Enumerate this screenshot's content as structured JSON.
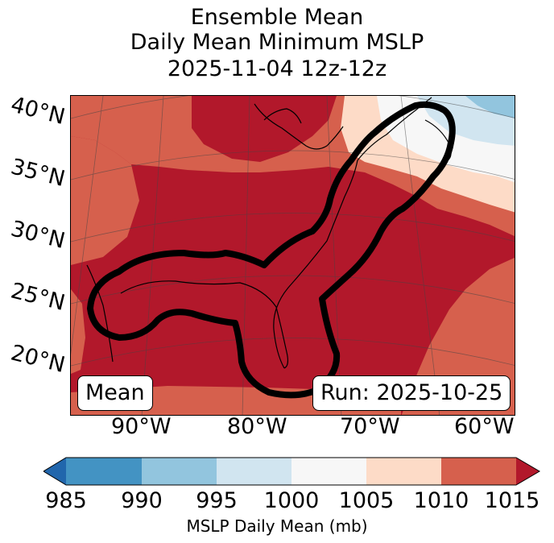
{
  "title": {
    "line1": "Ensemble Mean",
    "line2": "Daily Mean Minimum MSLP",
    "line3": "2025-11-04 12z-12z"
  },
  "axes": {
    "lat_labels": [
      "40°N",
      "35°N",
      "30°N",
      "25°N",
      "20°N"
    ],
    "lon_labels": [
      "90°W",
      "80°W",
      "70°W",
      "60°W"
    ]
  },
  "annotations": {
    "left": "Mean",
    "right": "Run: 2025-10-25"
  },
  "colorbar": {
    "ticks": [
      "985",
      "990",
      "995",
      "1000",
      "1005",
      "1010",
      "1015"
    ],
    "label": "MSLP Daily Mean (mb)",
    "colors": [
      "#2166ac",
      "#4393c3",
      "#92c5de",
      "#d1e5f0",
      "#f7f7f7",
      "#fddbc7",
      "#d6604d",
      "#b2182b"
    ]
  },
  "map_colors": {
    "high": "#b2182b",
    "mid_high": "#d6604d",
    "light": "#fddbc7",
    "neutral": "#f7f7f7",
    "pale_blue": "#d1e5f0",
    "blue": "#92c5de",
    "contour": "#000000"
  }
}
